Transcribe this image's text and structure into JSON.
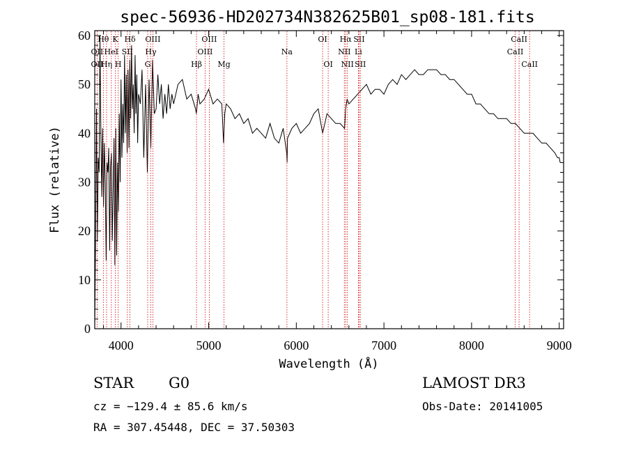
{
  "chart_data": {
    "type": "line",
    "title": "spec-56936-HD202734N382625B01_sp08-181.fits",
    "xlabel": "Wavelength (Å)",
    "ylabel": "Flux (relative)",
    "xlim": [
      3700,
      9050
    ],
    "ylim": [
      0,
      61
    ],
    "xticks": [
      4000,
      5000,
      6000,
      7000,
      8000,
      9000
    ],
    "yticks": [
      0,
      10,
      20,
      30,
      40,
      50,
      60
    ],
    "series": [
      {
        "name": "flux",
        "x": [
          3700,
          3710,
          3720,
          3730,
          3740,
          3750,
          3760,
          3770,
          3780,
          3790,
          3800,
          3810,
          3820,
          3830,
          3840,
          3850,
          3860,
          3870,
          3880,
          3890,
          3900,
          3910,
          3920,
          3930,
          3940,
          3950,
          3960,
          3970,
          3980,
          3990,
          4000,
          4010,
          4020,
          4030,
          4040,
          4050,
          4060,
          4070,
          4080,
          4090,
          4100,
          4110,
          4120,
          4130,
          4140,
          4150,
          4160,
          4170,
          4180,
          4190,
          4200,
          4220,
          4240,
          4260,
          4280,
          4300,
          4320,
          4340,
          4360,
          4380,
          4400,
          4420,
          4440,
          4460,
          4480,
          4500,
          4520,
          4540,
          4560,
          4580,
          4600,
          4650,
          4700,
          4750,
          4800,
          4850,
          4860,
          4880,
          4900,
          4950,
          5000,
          5050,
          5100,
          5150,
          5170,
          5183,
          5200,
          5250,
          5300,
          5350,
          5400,
          5450,
          5500,
          5550,
          5600,
          5650,
          5700,
          5750,
          5800,
          5850,
          5890,
          5895,
          5900,
          5950,
          6000,
          6050,
          6100,
          6150,
          6200,
          6250,
          6300,
          6350,
          6400,
          6450,
          6500,
          6550,
          6563,
          6580,
          6600,
          6650,
          6700,
          6750,
          6800,
          6850,
          6900,
          6950,
          7000,
          7050,
          7100,
          7150,
          7200,
          7250,
          7300,
          7350,
          7400,
          7450,
          7500,
          7550,
          7600,
          7650,
          7700,
          7750,
          7800,
          7850,
          7900,
          7950,
          8000,
          8050,
          8100,
          8150,
          8200,
          8250,
          8300,
          8350,
          8400,
          8450,
          8500,
          8550,
          8600,
          8650,
          8700,
          8750,
          8800,
          8850,
          8900,
          8950,
          8980,
          9000,
          9010
        ],
        "y": [
          0.5,
          20,
          45,
          18,
          35,
          32,
          60,
          40,
          27,
          41,
          25,
          38,
          30,
          14,
          34,
          32,
          37,
          16,
          33,
          36,
          18,
          28,
          39,
          13,
          41,
          15,
          34,
          24,
          44,
          30,
          51,
          35,
          46,
          38,
          56,
          40,
          52,
          36,
          53,
          37,
          55,
          43,
          58,
          45,
          50,
          40,
          56,
          44,
          52,
          38,
          48,
          46,
          53,
          35,
          50,
          32,
          51,
          37,
          55,
          44,
          45,
          52,
          46,
          50,
          43,
          48,
          44,
          50,
          45,
          48,
          46,
          50,
          51,
          47,
          48,
          45,
          44,
          48,
          46,
          47,
          49,
          46,
          47,
          46,
          38,
          44,
          46,
          45,
          43,
          44,
          42,
          43,
          40,
          41,
          40,
          39,
          42,
          39,
          38,
          41,
          36,
          34,
          39,
          41,
          42,
          40,
          41,
          42,
          44,
          45,
          40,
          44,
          43,
          42,
          42,
          41,
          45,
          47,
          46,
          47,
          48,
          49,
          50,
          48,
          49,
          49,
          48,
          50,
          51,
          50,
          52,
          51,
          52,
          53,
          52,
          52,
          53,
          53,
          53,
          52,
          52,
          51,
          51,
          50,
          49,
          48,
          48,
          46,
          46,
          45,
          44,
          44,
          43,
          43,
          43,
          42,
          42,
          41,
          40,
          40,
          40,
          39,
          38,
          38,
          37,
          36,
          35,
          35,
          34
        ]
      }
    ],
    "line_markers_row1": [
      {
        "label": "Hθ",
        "x": 3798
      },
      {
        "label": "K",
        "x": 3934
      },
      {
        "label": "Hδ",
        "x": 4102
      },
      {
        "label": "OIII",
        "x": 4363
      },
      {
        "label": "OIII",
        "x": 5007
      },
      {
        "label": "OI",
        "x": 6300
      },
      {
        "label": "Hα",
        "x": 6563
      },
      {
        "label": "SII",
        "x": 6717
      },
      {
        "label": "CaII",
        "x": 8542
      }
    ],
    "line_markers_row2": [
      {
        "label": "OII",
        "x": 3727
      },
      {
        "label": "HeI",
        "x": 3889
      },
      {
        "label": "SII",
        "x": 4072
      },
      {
        "label": "Hγ",
        "x": 4340
      },
      {
        "label": "OIII",
        "x": 4959
      },
      {
        "label": "Na",
        "x": 5893
      },
      {
        "label": "NII",
        "x": 6548
      },
      {
        "label": "Li",
        "x": 6708
      },
      {
        "label": "CaII",
        "x": 8498
      }
    ],
    "line_markers_row3": [
      {
        "label": "OII",
        "x": 3727
      },
      {
        "label": "Hη",
        "x": 3835
      },
      {
        "label": "H",
        "x": 3968
      },
      {
        "label": "G",
        "x": 4304
      },
      {
        "label": "Hβ",
        "x": 4861
      },
      {
        "label": "Mg",
        "x": 5175
      },
      {
        "label": "OI",
        "x": 6364
      },
      {
        "label": "NII",
        "x": 6583
      },
      {
        "label": "SII",
        "x": 6731
      },
      {
        "label": "CaII",
        "x": 8662
      }
    ],
    "marker_color": "#cc0000"
  },
  "info": {
    "class": "STAR",
    "subclass": "G0",
    "survey": "LAMOST DR3",
    "cz": "cz = −129.4 ± 85.6 km/s",
    "obs_date": "Obs-Date: 20141005",
    "radec": "RA = 307.45448, DEC =  37.50303"
  }
}
